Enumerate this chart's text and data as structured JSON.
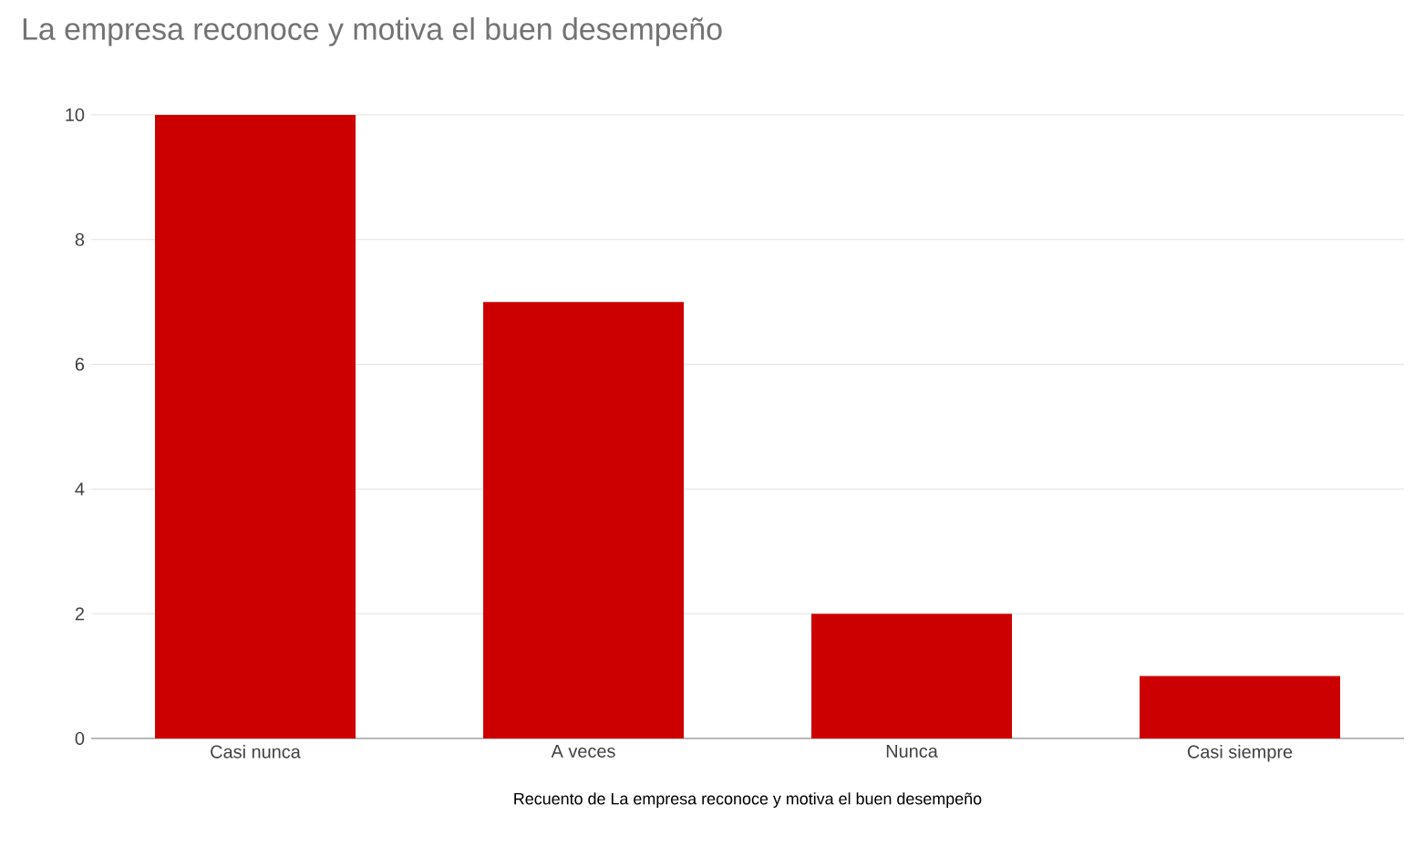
{
  "chart_data": {
    "type": "bar",
    "title": "La empresa reconoce y motiva el buen desempeño",
    "xlabel": "Recuento de La empresa reconoce y motiva el buen desempeño",
    "categories": [
      "Casi nunca",
      "A veces",
      "Nunca",
      "Casi siempre"
    ],
    "values": [
      10,
      7,
      2,
      1
    ],
    "color": "#cc0000",
    "ylim": [
      0,
      10
    ],
    "yticks": [
      0,
      2,
      4,
      6,
      8,
      10
    ],
    "grid": "y"
  }
}
